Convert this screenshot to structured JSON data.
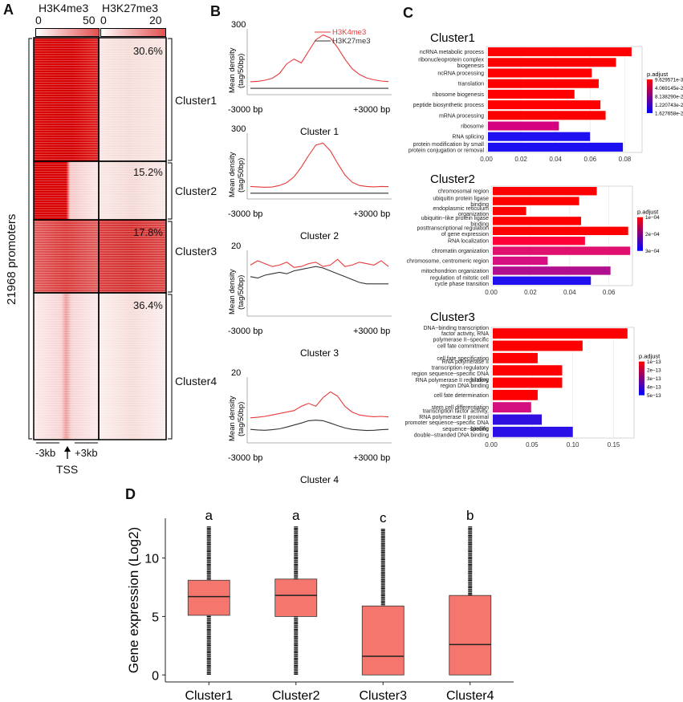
{
  "panels": {
    "a": "A",
    "b": "B",
    "c": "C",
    "d": "D"
  },
  "panel_a": {
    "col1_title": "H3K4me3",
    "col2_title": "H3K27me3",
    "scale1": {
      "min": "0",
      "max": "50"
    },
    "scale2": {
      "min": "0",
      "max": "20"
    },
    "row_axis_label": "21968 promoters",
    "clusters": [
      {
        "name": "Cluster1",
        "pct": "30.6%"
      },
      {
        "name": "Cluster2",
        "pct": "15.2%"
      },
      {
        "name": "Cluster3",
        "pct": "17.8%"
      },
      {
        "name": "Cluster4",
        "pct": "36.4%"
      }
    ],
    "left_tick": "-3kb",
    "right_tick": "+3kb",
    "tss_label": "TSS"
  },
  "colors": {
    "heat_red": "#d40000",
    "heat_light": "#fbeaea",
    "h3k4_line": "#e8393a",
    "h3k27_line": "#333333",
    "box_fill": "#f4766d",
    "bar_top": "#ff0000",
    "bar_bottom": "#0000ff"
  },
  "chart_data": [
    {
      "type": "line",
      "panel": "B",
      "title": "Cluster 1",
      "ylabel": "Mean density (tag/50bp)",
      "ymax_label": "300",
      "ylim": [
        0,
        300
      ],
      "x_labels": [
        "-3000 bp",
        "+3000 bp"
      ],
      "legend": [
        "H3K4me3",
        "H3K27me3"
      ],
      "series": [
        {
          "name": "H3K4me3",
          "values": [
            42,
            44,
            50,
            60,
            85,
            135,
            160,
            140,
            200,
            260,
            285,
            270,
            220,
            160,
            110,
            80,
            62,
            52,
            46,
            43
          ]
        },
        {
          "name": "H3K27me3",
          "values": [
            8,
            8,
            8,
            8,
            8,
            8,
            8,
            8,
            8,
            8,
            8,
            8,
            8,
            8,
            8,
            8,
            8,
            8,
            8,
            8
          ]
        }
      ]
    },
    {
      "type": "line",
      "panel": "B",
      "title": "Cluster 2",
      "ylabel": "Mean density (tag/50bp)",
      "ymax_label": "300",
      "ylim": [
        0,
        300
      ],
      "x_labels": [
        "-3000 bp",
        "+3000 bp"
      ],
      "series": [
        {
          "name": "H3K4me3",
          "values": [
            40,
            38,
            36,
            37,
            45,
            60,
            90,
            140,
            200,
            255,
            265,
            225,
            160,
            100,
            62,
            45,
            40,
            38,
            40,
            39
          ]
        },
        {
          "name": "H3K27me3",
          "values": [
            5,
            5,
            5,
            5,
            5,
            5,
            5,
            5,
            5,
            5,
            5,
            5,
            5,
            5,
            5,
            5,
            5,
            5,
            5,
            5
          ]
        }
      ]
    },
    {
      "type": "line",
      "panel": "B",
      "title": "Cluster 3",
      "ylabel": "Mean density (tag/50bp)",
      "ymax_label": "20",
      "ylim": [
        0,
        20
      ],
      "x_labels": [
        "-3000 bp",
        "+3000 bp"
      ],
      "series": [
        {
          "name": "H3K4me3",
          "values": [
            16,
            17.5,
            16.5,
            15.5,
            16,
            17,
            15.2,
            15.5,
            16.5,
            17,
            15.5,
            16,
            18,
            15.5,
            16,
            17,
            16.5,
            16,
            17.5,
            15.5
          ]
        },
        {
          "name": "H3K27me3",
          "values": [
            12,
            11.5,
            12.5,
            13,
            13.5,
            13,
            14,
            14.5,
            15,
            15.5,
            15,
            14,
            13,
            12,
            11,
            10,
            9.5,
            9.5,
            9.5,
            9.5
          ]
        }
      ]
    },
    {
      "type": "line",
      "panel": "B",
      "title": "Cluster 4",
      "ylabel": "Mean density (tag/50bp)",
      "ymax_label": "20",
      "ylim": [
        0,
        20
      ],
      "x_labels": [
        "-3000 bp",
        "+3000 bp"
      ],
      "series": [
        {
          "name": "H3K4me3",
          "values": [
            7,
            7.2,
            7.5,
            8,
            8.5,
            9,
            9.5,
            11,
            12,
            11,
            14,
            16,
            14.5,
            11,
            9,
            8,
            7.6,
            7.4,
            7.5,
            7.3
          ]
        },
        {
          "name": "H3K27me3",
          "values": [
            3,
            2.8,
            2.7,
            2.9,
            3.2,
            3.8,
            4.5,
            5.2,
            6,
            6.2,
            6,
            5.2,
            4.3,
            3.5,
            3,
            2.8,
            2.6,
            2.7,
            2.9,
            3
          ]
        }
      ]
    },
    {
      "type": "bar",
      "orientation": "horizontal",
      "panel": "C",
      "title": "Cluster1",
      "categories": [
        "ncRNA metabolic process",
        "ribonucleoprotein complex biogenesis",
        "ncRNA processing",
        "translation",
        "ribosome biogenesis",
        "peptide biosynthetic process",
        "mRNA processing",
        "ribosome",
        "RNA splicing",
        "protein modification by small protein conjugation or removal"
      ],
      "values": [
        0.083,
        0.074,
        0.06,
        0.064,
        0.05,
        0.065,
        0.068,
        0.041,
        0.059,
        0.078
      ],
      "colors": [
        "#ff0000",
        "#ff0000",
        "#ff0000",
        "#ff0000",
        "#ff0000",
        "#ff0000",
        "#ff0000",
        "#d4007f",
        "#1f10f0",
        "#1c10f2"
      ],
      "xticks": [
        "0.00",
        "0.02",
        "0.04",
        "0.06",
        "0.08"
      ],
      "xlim": [
        0,
        0.09
      ],
      "legend_title": "p.adjust",
      "legend_ticks": [
        "9.629571e-33",
        "4.069145e-22",
        "8.138290e-22",
        "1.220743e-21",
        "1.627658e-21"
      ]
    },
    {
      "type": "bar",
      "orientation": "horizontal",
      "panel": "C",
      "title": "Cluster2",
      "categories": [
        "chromosomal region",
        "ubiquitin protein ligase binding",
        "endoplasmic reticulum organization",
        "ubiquitin−like protein ligase binding",
        "posttranscriptional regulation of gene expression",
        "RNA localization",
        "chromatin organization",
        "chromosome, centromeric region",
        "mitochondrion organization",
        "regulation of mitotic cell cycle phase transition"
      ],
      "values": [
        0.053,
        0.044,
        0.017,
        0.045,
        0.069,
        0.047,
        0.07,
        0.028,
        0.06,
        0.05
      ],
      "colors": [
        "#ff0000",
        "#ff0000",
        "#ff0000",
        "#ff0000",
        "#ff0000",
        "#ff0038",
        "#e0106f",
        "#d61080",
        "#b0108f",
        "#2010f0"
      ],
      "xticks": [
        "0.00",
        "0.02",
        "0.04",
        "0.06"
      ],
      "xlim": [
        0,
        0.072
      ],
      "legend_title": "p.adjust",
      "legend_ticks": [
        "1e−04",
        "2e−04",
        "3e−04"
      ]
    },
    {
      "type": "bar",
      "orientation": "horizontal",
      "panel": "C",
      "title": "Cluster3",
      "categories": [
        "DNA−binding transcription factor activity, RNA polymerase II−specific",
        "cell fate commitment",
        "cell fate specification",
        "RNA polymerase II transcription regulatory region sequence−specific DNA binding",
        "RNA polymerase II regulatory region DNA binding",
        "cell fate determination",
        "stem cell differentiation",
        "transcription factor activity, RNA polymerase II proximal promoter sequence−specific DNA binding",
        "sequence−specific double−stranded DNA binding"
      ],
      "values": [
        0.165,
        0.11,
        0.055,
        0.085,
        0.085,
        0.055,
        0.047,
        0.06,
        0.098
      ],
      "colors": [
        "#ff0000",
        "#ff0000",
        "#ff0000",
        "#ff0000",
        "#ff0000",
        "#ff0000",
        "#d4107f",
        "#3010e0",
        "#2a10e6"
      ],
      "xticks": [
        "0.00",
        "0.05",
        "0.10",
        "0.15"
      ],
      "xlim": [
        0,
        0.175
      ],
      "legend_title": "p.adjust",
      "legend_ticks": [
        "1e−13",
        "2e−13",
        "3e−13",
        "4e−13",
        "5e−13"
      ]
    },
    {
      "type": "box",
      "panel": "D",
      "ylabel": "Gene expression (Log2)",
      "categories": [
        "Cluster1",
        "Cluster2",
        "Cluster3",
        "Cluster4"
      ],
      "boxes": [
        {
          "q1": 5.1,
          "median": 6.7,
          "q3": 8.1,
          "upper": 12.7,
          "lower": 0,
          "letter": "a"
        },
        {
          "q1": 5.0,
          "median": 6.8,
          "q3": 8.2,
          "upper": 12.7,
          "lower": 0,
          "letter": "a"
        },
        {
          "q1": 0,
          "median": 1.6,
          "q3": 5.9,
          "upper": 12.5,
          "lower": 0,
          "letter": "c"
        },
        {
          "q1": 0,
          "median": 2.6,
          "q3": 6.8,
          "upper": 12.7,
          "lower": 0,
          "letter": "b"
        }
      ],
      "yticks": [
        "0",
        "5",
        "10"
      ],
      "ylim": [
        -0.6,
        13.4
      ]
    }
  ]
}
